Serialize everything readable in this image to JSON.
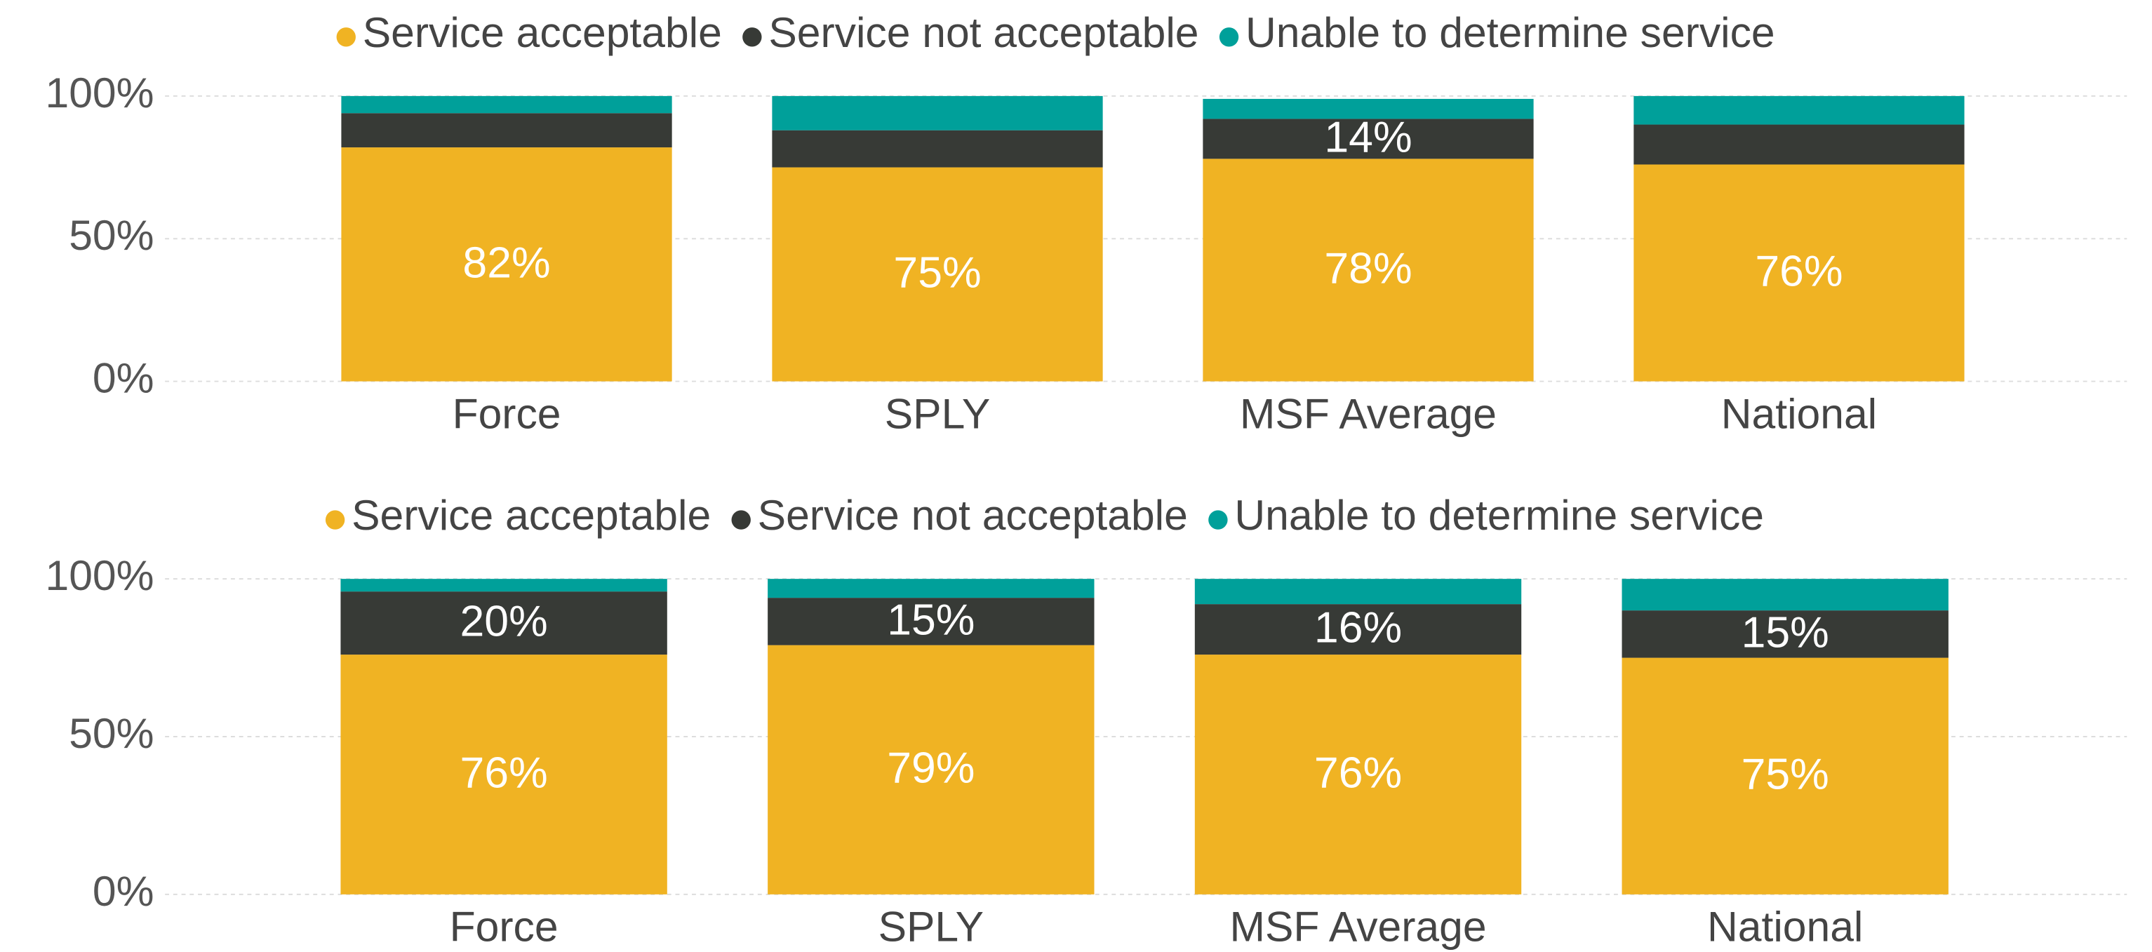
{
  "chart_data": [
    {
      "type": "stacked_bar",
      "categories": [
        "Force",
        "SPLY",
        "MSF Average",
        "National"
      ],
      "series": [
        {
          "name": "Service acceptable",
          "color": "#F0B323",
          "values": [
            82,
            75,
            78,
            76
          ],
          "value_labels": [
            "82%",
            "75%",
            "78%",
            "76%"
          ]
        },
        {
          "name": "Service not acceptable",
          "color": "#373A36",
          "values": [
            12,
            13,
            14,
            14
          ],
          "value_labels": [
            null,
            null,
            "14%",
            null
          ]
        },
        {
          "name": "Unable to determine service",
          "color": "#00A09A",
          "values": [
            6,
            12,
            7,
            10
          ],
          "value_labels": [
            null,
            null,
            null,
            null
          ]
        }
      ],
      "ylim": [
        0,
        100
      ],
      "yticks": [
        {
          "value": 0,
          "label": "0%"
        },
        {
          "value": 50,
          "label": "50%"
        },
        {
          "value": 100,
          "label": "100%"
        }
      ],
      "grid": true,
      "legend": "top"
    },
    {
      "type": "stacked_bar",
      "categories": [
        "Force",
        "SPLY",
        "MSF Average",
        "National"
      ],
      "series": [
        {
          "name": "Service acceptable",
          "color": "#F0B323",
          "values": [
            76,
            79,
            76,
            75
          ],
          "value_labels": [
            "76%",
            "79%",
            "76%",
            "75%"
          ]
        },
        {
          "name": "Service not acceptable",
          "color": "#373A36",
          "values": [
            20,
            15,
            16,
            15
          ],
          "value_labels": [
            "20%",
            "15%",
            "16%",
            "15%"
          ]
        },
        {
          "name": "Unable to determine service",
          "color": "#00A09A",
          "values": [
            4,
            6,
            8,
            10
          ],
          "value_labels": [
            null,
            null,
            null,
            null
          ]
        }
      ],
      "ylim": [
        0,
        100
      ],
      "yticks": [
        {
          "value": 0,
          "label": "0%"
        },
        {
          "value": 50,
          "label": "50%"
        },
        {
          "value": 100,
          "label": "100%"
        }
      ],
      "grid": true,
      "legend": "top"
    }
  ]
}
